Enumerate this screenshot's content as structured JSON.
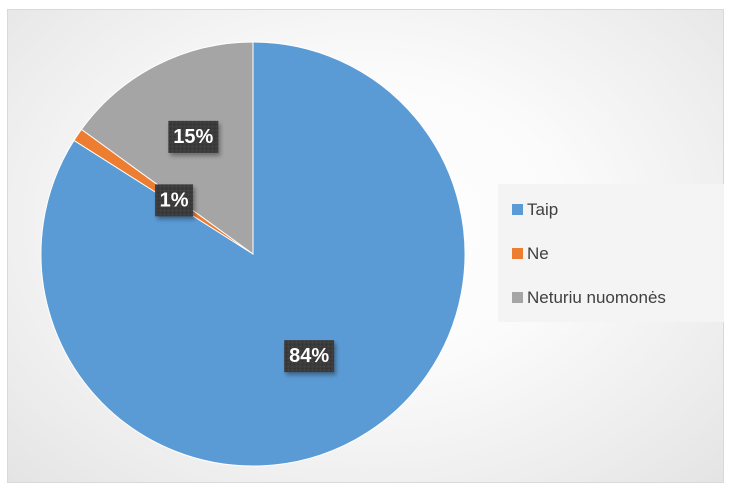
{
  "chart_data": {
    "type": "pie",
    "title": "",
    "categories": [
      "Taip",
      "Ne",
      "Neturiu nuomonės"
    ],
    "values": [
      84,
      1,
      15
    ],
    "labels": [
      "84%",
      "1%",
      "15%"
    ],
    "colors": [
      "#5b9bd5",
      "#ed7d31",
      "#a5a5a5"
    ],
    "start_angle_deg": 0,
    "direction": "clockwise",
    "legend_position": "right",
    "data_label_style": "dark-box-white-bold"
  }
}
